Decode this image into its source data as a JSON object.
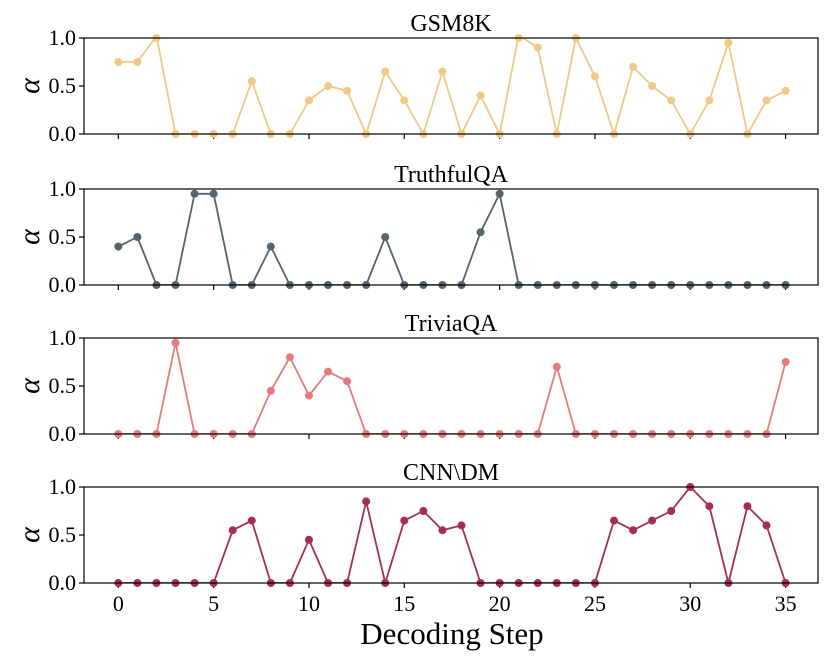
{
  "chart_data": {
    "type": "line",
    "xlabel": "Decoding Step",
    "xlim": [
      -1.8,
      36.7
    ],
    "xticks": [
      0,
      5,
      10,
      15,
      20,
      25,
      30,
      35
    ],
    "x": [
      0,
      1,
      2,
      3,
      4,
      5,
      6,
      7,
      8,
      9,
      10,
      11,
      12,
      13,
      14,
      15,
      16,
      17,
      18,
      19,
      20,
      21,
      22,
      23,
      24,
      25,
      26,
      27,
      28,
      29,
      30,
      31,
      32,
      33,
      34,
      35
    ],
    "panels": [
      {
        "title": "GSM8K",
        "ylabel": "α",
        "ylim": [
          0,
          1
        ],
        "yticks": [
          "0.0",
          "0.5",
          "1.0"
        ],
        "color": "#f0c987",
        "values": [
          0.75,
          0.75,
          1.02,
          0.0,
          0.0,
          0.0,
          0.0,
          0.55,
          0.0,
          0.0,
          0.35,
          0.5,
          0.45,
          0.0,
          0.65,
          0.35,
          0.0,
          0.65,
          0.0,
          0.4,
          0.0,
          1.03,
          0.9,
          0.0,
          1.0,
          0.6,
          0.0,
          0.7,
          0.5,
          0.35,
          0.0,
          0.35,
          0.95,
          0.0,
          0.35,
          0.45
        ]
      },
      {
        "title": "TruthfulQA",
        "ylabel": "α",
        "ylim": [
          0,
          1
        ],
        "yticks": [
          "0.0",
          "0.5",
          "1.0"
        ],
        "color": "#546570",
        "values": [
          0.4,
          0.5,
          0.0,
          0.0,
          0.95,
          0.95,
          0.0,
          0.0,
          0.4,
          0.0,
          0.0,
          0.0,
          0.0,
          0.0,
          0.5,
          0.0,
          0.0,
          0.0,
          0.0,
          0.55,
          0.95,
          0.0,
          0.0,
          0.0,
          0.0,
          0.0,
          0.0,
          0.0,
          0.0,
          0.0,
          0.0,
          0.0,
          0.0,
          0.0,
          0.0,
          0.0
        ]
      },
      {
        "title": "TriviaQA",
        "ylabel": "α",
        "ylim": [
          0,
          1
        ],
        "yticks": [
          "0.0",
          "0.5",
          "1.0"
        ],
        "color": "#e57b7b",
        "values": [
          0.0,
          0.0,
          0.0,
          0.95,
          0.0,
          0.0,
          0.0,
          0.0,
          0.45,
          0.8,
          0.4,
          0.65,
          0.55,
          0.0,
          0.0,
          0.0,
          0.0,
          0.0,
          0.0,
          0.0,
          0.0,
          0.0,
          0.0,
          0.7,
          0.0,
          0.0,
          0.0,
          0.0,
          0.0,
          0.0,
          0.0,
          0.0,
          0.0,
          0.0,
          0.0,
          0.75
        ]
      },
      {
        "title": "CNN\\DM",
        "ylabel": "α",
        "ylim": [
          0,
          1
        ],
        "yticks": [
          "0.0",
          "0.5",
          "1.0"
        ],
        "color": "#a3304f",
        "values": [
          0.0,
          0.0,
          0.0,
          0.0,
          0.0,
          0.0,
          0.55,
          0.65,
          0.0,
          0.0,
          0.45,
          0.0,
          0.0,
          0.85,
          0.0,
          0.65,
          0.75,
          0.55,
          0.6,
          0.0,
          0.0,
          0.0,
          0.0,
          0.0,
          0.0,
          0.0,
          0.65,
          0.55,
          0.65,
          0.75,
          1.0,
          0.8,
          0.0,
          0.8,
          0.6,
          0.0
        ]
      }
    ]
  }
}
